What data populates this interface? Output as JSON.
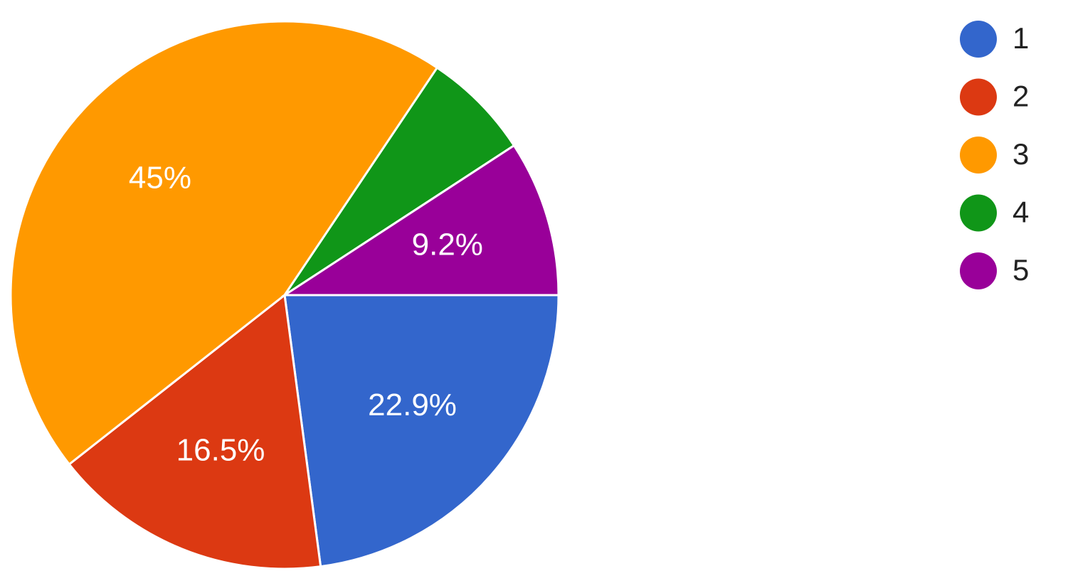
{
  "chart_data": {
    "type": "pie",
    "categories": [
      "1",
      "2",
      "3",
      "4",
      "5"
    ],
    "values": [
      22.9,
      16.5,
      45,
      6.4,
      9.2
    ],
    "value_labels": [
      "22.9%",
      "16.5%",
      "45%",
      null,
      "9.2%"
    ],
    "colors": [
      "#3366cc",
      "#dc3912",
      "#ff9900",
      "#109618",
      "#990099"
    ]
  }
}
